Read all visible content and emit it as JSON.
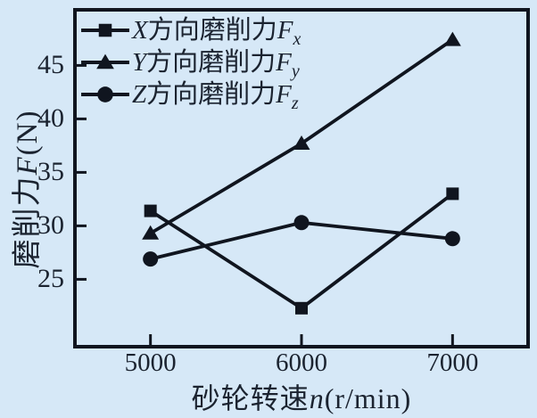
{
  "colors": {
    "background": "#d6e8f7",
    "ink": "#10151f",
    "text": "#1b2330"
  },
  "chart_data": {
    "type": "line",
    "x": [
      5000,
      6000,
      7000
    ],
    "xticks": [
      5000,
      6000,
      7000
    ],
    "yticks": [
      25,
      30,
      35,
      40,
      45
    ],
    "xlim": [
      4500,
      7500
    ],
    "ylim": [
      18.7,
      50.2
    ],
    "grid": false,
    "legend_position": "top-left",
    "xlabel": {
      "text": "砂轮转速",
      "symbol": "n",
      "unit": "(r/min)",
      "full": "砂轮转速n(r/min)"
    },
    "ylabel": {
      "text": "磨削力",
      "symbol": "F",
      "unit": "(N)",
      "full": "磨削力F(N)"
    },
    "series": [
      {
        "name": "X方向磨削力Fx",
        "var": "X",
        "label": "方向磨削力",
        "symbol": "F",
        "sub": "x",
        "marker": "square",
        "values": [
          31.4,
          22.3,
          33.0
        ]
      },
      {
        "name": "Y方向磨削力Fy",
        "var": "Y",
        "label": "方向磨削力",
        "symbol": "F",
        "sub": "y",
        "marker": "triangle",
        "values": [
          29.3,
          37.7,
          47.4
        ]
      },
      {
        "name": "Z方向磨削力Fz",
        "var": "Z",
        "label": "方向磨削力",
        "symbol": "F",
        "sub": "z",
        "marker": "circle",
        "values": [
          26.9,
          30.3,
          28.8
        ]
      }
    ]
  }
}
